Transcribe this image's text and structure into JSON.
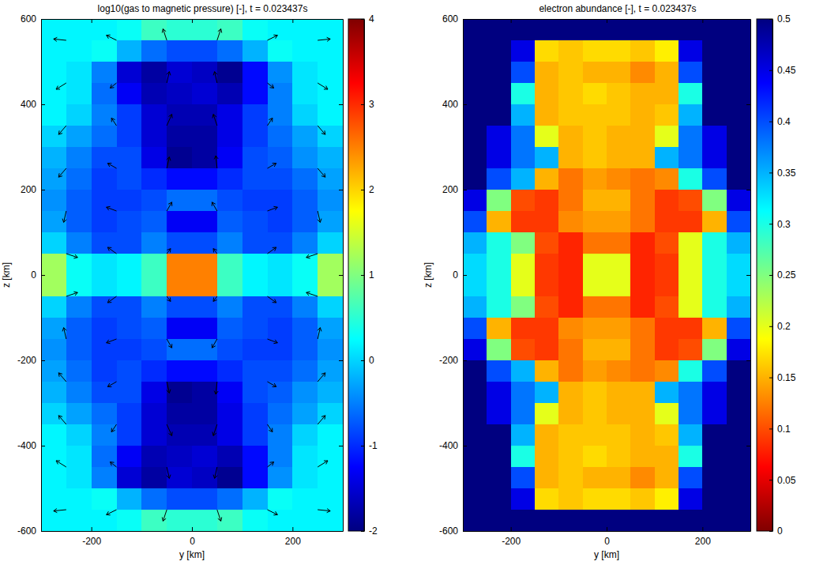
{
  "chart_data": [
    {
      "type": "heatmap",
      "title": "log10(gas to magnetic pressure) [-], t = 0.023437s",
      "xlabel": "y [km]",
      "ylabel": "z [km]",
      "xlim": [
        -300,
        300
      ],
      "ylim": [
        -600,
        600
      ],
      "xticks": [
        -200,
        0,
        200
      ],
      "yticks": [
        -600,
        -400,
        -200,
        0,
        200,
        400,
        600
      ],
      "color": "jet",
      "x": [
        -275,
        -225,
        -175,
        -125,
        -75,
        -25,
        25,
        75,
        125,
        175,
        225,
        275
      ],
      "y": [
        575,
        525,
        475,
        425,
        375,
        325,
        275,
        225,
        175,
        125,
        75,
        25,
        -25,
        -75,
        -125,
        -175,
        -225,
        -275,
        -325,
        -375,
        -425,
        -475,
        -525,
        -575
      ],
      "cells": [
        [
          0.2,
          0.2,
          0.2,
          0.3,
          0.6,
          0.5,
          0.5,
          0.6,
          0.3,
          0.2,
          0.2,
          0.2
        ],
        [
          0.2,
          0.2,
          0.3,
          -0.2,
          -0.6,
          -0.8,
          -0.8,
          -0.6,
          -0.2,
          0.3,
          0.2,
          0.2
        ],
        [
          0.2,
          0.1,
          -0.5,
          -1.5,
          -1.8,
          -1.5,
          -1.6,
          -1.9,
          -1.2,
          -0.4,
          0.1,
          0.2
        ],
        [
          0.2,
          0.1,
          -0.6,
          -1.3,
          -1.7,
          -1.6,
          -1.5,
          -1.7,
          -1.2,
          -0.5,
          0.1,
          0.2
        ],
        [
          0.2,
          0.0,
          -0.5,
          -0.9,
          -1.5,
          -1.7,
          -1.7,
          -1.4,
          -0.9,
          -0.5,
          0.0,
          0.2
        ],
        [
          0.0,
          -0.3,
          -0.6,
          -0.9,
          -1.5,
          -1.8,
          -1.8,
          -1.4,
          -0.9,
          -0.6,
          -0.3,
          0.0
        ],
        [
          -0.2,
          -0.5,
          -0.8,
          -0.8,
          -1.4,
          -1.9,
          -1.8,
          -1.3,
          -0.8,
          -0.7,
          -0.4,
          -0.2
        ],
        [
          -0.3,
          -0.6,
          -0.9,
          -0.8,
          -1.0,
          -1.2,
          -1.2,
          -1.0,
          -0.8,
          -0.8,
          -0.6,
          -0.3
        ],
        [
          -0.4,
          -0.7,
          -0.9,
          -0.9,
          -0.8,
          -0.6,
          -0.6,
          -0.8,
          -0.9,
          -0.9,
          -0.7,
          -0.4
        ],
        [
          -0.3,
          -0.7,
          -0.9,
          -0.8,
          -0.7,
          -1.3,
          -1.3,
          -0.7,
          -0.8,
          -0.9,
          -0.7,
          -0.3
        ],
        [
          0.0,
          -0.5,
          -0.8,
          -0.8,
          -0.5,
          -0.8,
          -0.8,
          -0.5,
          -0.8,
          -0.8,
          -0.5,
          0.0
        ],
        [
          1.2,
          0.3,
          0.1,
          0.2,
          0.6,
          2.5,
          2.5,
          0.6,
          0.2,
          0.1,
          0.3,
          1.2
        ],
        [
          1.2,
          0.3,
          0.1,
          0.2,
          0.6,
          2.5,
          2.5,
          0.6,
          0.2,
          0.1,
          0.3,
          1.2
        ],
        [
          0.0,
          -0.5,
          -0.8,
          -0.8,
          -0.5,
          -0.8,
          -0.8,
          -0.5,
          -0.8,
          -0.8,
          -0.5,
          0.0
        ],
        [
          -0.3,
          -0.7,
          -0.9,
          -0.8,
          -0.7,
          -1.3,
          -1.3,
          -0.7,
          -0.8,
          -0.9,
          -0.7,
          -0.3
        ],
        [
          -0.4,
          -0.7,
          -0.9,
          -0.9,
          -0.8,
          -0.6,
          -0.6,
          -0.8,
          -0.9,
          -0.9,
          -0.7,
          -0.4
        ],
        [
          -0.3,
          -0.6,
          -0.9,
          -0.8,
          -1.0,
          -1.2,
          -1.2,
          -1.0,
          -0.8,
          -0.8,
          -0.6,
          -0.3
        ],
        [
          -0.2,
          -0.5,
          -0.8,
          -0.8,
          -1.4,
          -1.9,
          -1.8,
          -1.3,
          -0.8,
          -0.7,
          -0.4,
          -0.2
        ],
        [
          0.0,
          -0.3,
          -0.6,
          -0.9,
          -1.5,
          -1.8,
          -1.8,
          -1.4,
          -0.9,
          -0.6,
          -0.3,
          0.0
        ],
        [
          0.2,
          0.0,
          -0.5,
          -0.9,
          -1.5,
          -1.7,
          -1.7,
          -1.4,
          -0.9,
          -0.5,
          0.0,
          0.2
        ],
        [
          0.2,
          0.1,
          -0.6,
          -1.3,
          -1.7,
          -1.6,
          -1.5,
          -1.7,
          -1.2,
          -0.5,
          0.1,
          0.2
        ],
        [
          0.2,
          0.1,
          -0.5,
          -1.5,
          -1.8,
          -1.5,
          -1.6,
          -1.9,
          -1.2,
          -0.4,
          0.1,
          0.2
        ],
        [
          0.2,
          0.2,
          0.3,
          -0.2,
          -0.6,
          -0.8,
          -0.8,
          -0.6,
          -0.2,
          0.3,
          0.2,
          0.2
        ],
        [
          0.2,
          0.2,
          0.2,
          0.3,
          0.6,
          0.5,
          0.5,
          0.6,
          0.3,
          0.2,
          0.2,
          0.2
        ]
      ],
      "colorbar": {
        "range": [
          -2,
          4
        ],
        "ticks": [
          -2,
          -1,
          0,
          1,
          2,
          3,
          4
        ]
      },
      "arrows": {
        "y": [
          -250,
          -150,
          -50,
          50,
          150,
          250
        ],
        "z": [
          550,
          450,
          350,
          250,
          150,
          50,
          -50,
          -150,
          -250,
          -350,
          -450,
          -550
        ],
        "u": [
          [
            -1,
            -0.8,
            -0.3,
            0.3,
            0.8,
            1
          ],
          [
            -0.8,
            -0.5,
            0.2,
            -0.2,
            0.5,
            0.8
          ],
          [
            -0.6,
            -0.4,
            0.4,
            -0.3,
            0.4,
            0.6
          ],
          [
            -0.6,
            -0.7,
            0.2,
            -0.1,
            0.7,
            0.6
          ],
          [
            -0.2,
            -0.8,
            0.4,
            -0.4,
            0.8,
            0.2
          ],
          [
            0.9,
            -0.7,
            0.3,
            -0.3,
            0.7,
            -0.9
          ],
          [
            0.9,
            -0.7,
            0.3,
            -0.3,
            0.7,
            -0.9
          ],
          [
            -0.2,
            -0.8,
            0.4,
            -0.4,
            0.8,
            0.2
          ],
          [
            -0.6,
            -0.7,
            0.2,
            -0.1,
            0.7,
            0.6
          ],
          [
            -0.6,
            -0.4,
            0.4,
            -0.3,
            0.4,
            0.6
          ],
          [
            -0.8,
            -0.5,
            0.2,
            -0.2,
            0.5,
            0.8
          ],
          [
            -1,
            -0.8,
            -0.3,
            0.3,
            0.8,
            1
          ]
        ],
        "v": [
          [
            0.1,
            0.4,
            0.9,
            0.9,
            0.4,
            0.1
          ],
          [
            -0.5,
            -0.4,
            0.9,
            0.9,
            -0.4,
            -0.5
          ],
          [
            -0.7,
            0.6,
            0.9,
            0.9,
            0.6,
            -0.7
          ],
          [
            -0.7,
            0.4,
            0.9,
            1,
            0.4,
            -0.7
          ],
          [
            -0.9,
            0.3,
            0.7,
            0.7,
            0.3,
            -0.9
          ],
          [
            -0.3,
            0.5,
            0.4,
            0.4,
            0.5,
            -0.3
          ],
          [
            0.3,
            -0.5,
            -0.4,
            -0.4,
            -0.5,
            0.3
          ],
          [
            0.9,
            -0.3,
            -0.7,
            -0.7,
            -0.3,
            0.9
          ],
          [
            0.7,
            -0.4,
            -0.9,
            -1,
            -0.4,
            0.7
          ],
          [
            0.7,
            -0.6,
            -0.9,
            -0.9,
            -0.6,
            0.7
          ],
          [
            0.5,
            0.4,
            -0.9,
            -0.9,
            0.4,
            0.5
          ],
          [
            -0.1,
            -0.4,
            -0.9,
            -0.9,
            -0.4,
            -0.1
          ]
        ]
      }
    },
    {
      "type": "heatmap",
      "title": "electron abundance [-], t = 0.023437s",
      "xlabel": "y [km]",
      "ylabel": "z [km]",
      "xlim": [
        -300,
        300
      ],
      "ylim": [
        -600,
        600
      ],
      "xticks": [
        -200,
        0,
        200
      ],
      "yticks": [
        -600,
        -400,
        -200,
        0,
        200,
        400,
        600
      ],
      "color": "jet_reversed",
      "x": [
        -275,
        -225,
        -175,
        -125,
        -75,
        -25,
        25,
        75,
        125,
        175,
        225,
        275
      ],
      "y": [
        575,
        525,
        475,
        425,
        375,
        325,
        275,
        225,
        175,
        125,
        75,
        25,
        -25,
        -75,
        -125,
        -175,
        -225,
        -275,
        -325,
        -375,
        -425,
        -475,
        -525,
        -575
      ],
      "cells": [
        [
          0.5,
          0.5,
          0.5,
          0.5,
          0.5,
          0.5,
          0.5,
          0.5,
          0.5,
          0.5,
          0.5,
          0.5
        ],
        [
          0.5,
          0.5,
          0.45,
          0.17,
          0.16,
          0.17,
          0.17,
          0.16,
          0.18,
          0.45,
          0.5,
          0.5
        ],
        [
          0.5,
          0.5,
          0.4,
          0.15,
          0.16,
          0.15,
          0.15,
          0.13,
          0.15,
          0.4,
          0.5,
          0.5
        ],
        [
          0.5,
          0.5,
          0.3,
          0.15,
          0.16,
          0.17,
          0.16,
          0.15,
          0.15,
          0.3,
          0.5,
          0.5
        ],
        [
          0.5,
          0.5,
          0.35,
          0.15,
          0.16,
          0.16,
          0.16,
          0.15,
          0.16,
          0.35,
          0.5,
          0.5
        ],
        [
          0.5,
          0.45,
          0.38,
          0.2,
          0.15,
          0.16,
          0.15,
          0.15,
          0.2,
          0.38,
          0.45,
          0.5
        ],
        [
          0.5,
          0.45,
          0.38,
          0.35,
          0.15,
          0.16,
          0.15,
          0.15,
          0.35,
          0.38,
          0.45,
          0.5
        ],
        [
          0.5,
          0.4,
          0.35,
          0.15,
          0.12,
          0.14,
          0.13,
          0.12,
          0.13,
          0.3,
          0.4,
          0.5
        ],
        [
          0.45,
          0.25,
          0.1,
          0.09,
          0.12,
          0.15,
          0.15,
          0.12,
          0.09,
          0.1,
          0.25,
          0.45
        ],
        [
          0.4,
          0.15,
          0.09,
          0.09,
          0.13,
          0.14,
          0.14,
          0.12,
          0.09,
          0.09,
          0.15,
          0.4
        ],
        [
          0.35,
          0.3,
          0.25,
          0.1,
          0.08,
          0.12,
          0.12,
          0.08,
          0.1,
          0.2,
          0.3,
          0.35
        ],
        [
          0.33,
          0.3,
          0.2,
          0.09,
          0.08,
          0.2,
          0.2,
          0.08,
          0.09,
          0.2,
          0.3,
          0.33
        ],
        [
          0.33,
          0.3,
          0.2,
          0.09,
          0.08,
          0.2,
          0.2,
          0.08,
          0.09,
          0.2,
          0.3,
          0.33
        ],
        [
          0.35,
          0.3,
          0.25,
          0.1,
          0.08,
          0.12,
          0.12,
          0.08,
          0.1,
          0.2,
          0.3,
          0.35
        ],
        [
          0.4,
          0.15,
          0.09,
          0.09,
          0.13,
          0.14,
          0.14,
          0.12,
          0.09,
          0.09,
          0.15,
          0.4
        ],
        [
          0.45,
          0.25,
          0.1,
          0.09,
          0.12,
          0.15,
          0.15,
          0.12,
          0.09,
          0.1,
          0.25,
          0.45
        ],
        [
          0.5,
          0.4,
          0.35,
          0.15,
          0.12,
          0.14,
          0.13,
          0.12,
          0.13,
          0.3,
          0.4,
          0.5
        ],
        [
          0.5,
          0.45,
          0.38,
          0.35,
          0.15,
          0.16,
          0.15,
          0.15,
          0.35,
          0.38,
          0.45,
          0.5
        ],
        [
          0.5,
          0.45,
          0.38,
          0.2,
          0.15,
          0.16,
          0.15,
          0.15,
          0.2,
          0.38,
          0.45,
          0.5
        ],
        [
          0.5,
          0.5,
          0.35,
          0.15,
          0.16,
          0.16,
          0.16,
          0.15,
          0.16,
          0.35,
          0.5,
          0.5
        ],
        [
          0.5,
          0.5,
          0.3,
          0.15,
          0.16,
          0.17,
          0.16,
          0.15,
          0.15,
          0.3,
          0.5,
          0.5
        ],
        [
          0.5,
          0.5,
          0.4,
          0.15,
          0.16,
          0.15,
          0.15,
          0.13,
          0.15,
          0.4,
          0.5,
          0.5
        ],
        [
          0.5,
          0.5,
          0.45,
          0.17,
          0.16,
          0.17,
          0.17,
          0.16,
          0.18,
          0.45,
          0.5,
          0.5
        ],
        [
          0.5,
          0.5,
          0.5,
          0.5,
          0.5,
          0.5,
          0.5,
          0.5,
          0.5,
          0.5,
          0.5,
          0.5
        ]
      ],
      "colorbar": {
        "range": [
          0,
          0.5
        ],
        "ticks": [
          0,
          0.05,
          0.1,
          0.15,
          0.2,
          0.25,
          0.3,
          0.35,
          0.4,
          0.45,
          0.5
        ]
      }
    }
  ]
}
